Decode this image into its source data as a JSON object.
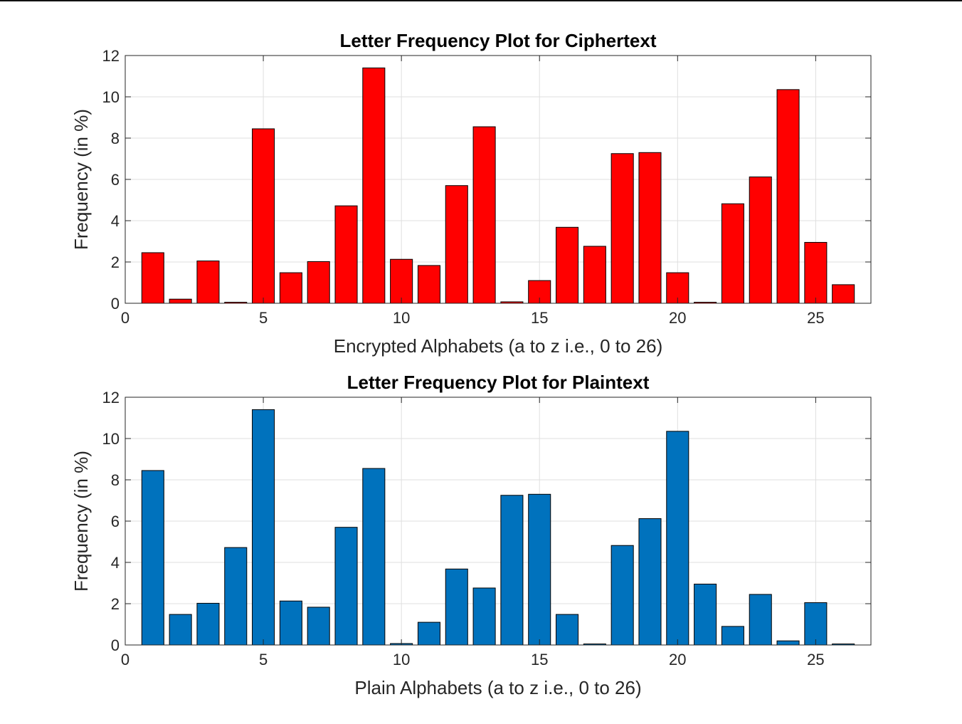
{
  "chart_data": [
    {
      "type": "bar",
      "title": "Letter Frequency Plot for Ciphertext",
      "xlabel": "Encrypted Alphabets (a to z i.e., 0 to 26)",
      "ylabel": "Frequency (in %)",
      "xlim": [
        0,
        27
      ],
      "ylim": [
        0,
        12
      ],
      "xticks": [
        0,
        5,
        10,
        15,
        20,
        25
      ],
      "yticks": [
        0,
        2,
        4,
        6,
        8,
        10,
        12
      ],
      "grid": true,
      "bar_color": "#ff0000",
      "x": [
        1,
        2,
        3,
        4,
        5,
        6,
        7,
        8,
        9,
        10,
        11,
        12,
        13,
        14,
        15,
        16,
        17,
        18,
        19,
        20,
        21,
        22,
        23,
        24,
        25,
        26
      ],
      "values": [
        2.45,
        0.2,
        2.05,
        0.05,
        8.45,
        1.48,
        2.02,
        4.72,
        11.4,
        2.13,
        1.83,
        5.7,
        8.55,
        0.07,
        1.1,
        3.68,
        2.76,
        7.25,
        7.3,
        1.48,
        0.05,
        4.82,
        6.12,
        10.35,
        2.95,
        0.9
      ]
    },
    {
      "type": "bar",
      "title": "Letter Frequency Plot for Plaintext",
      "xlabel": "Plain Alphabets (a to z i.e., 0 to 26)",
      "ylabel": "Frequency (in %)",
      "xlim": [
        0,
        27
      ],
      "ylim": [
        0,
        12
      ],
      "xticks": [
        0,
        5,
        10,
        15,
        20,
        25
      ],
      "yticks": [
        0,
        2,
        4,
        6,
        8,
        10,
        12
      ],
      "grid": true,
      "bar_color": "#0072bd",
      "x": [
        1,
        2,
        3,
        4,
        5,
        6,
        7,
        8,
        9,
        10,
        11,
        12,
        13,
        14,
        15,
        16,
        17,
        18,
        19,
        20,
        21,
        22,
        23,
        24,
        25,
        26
      ],
      "values": [
        8.45,
        1.48,
        2.02,
        4.72,
        11.4,
        2.13,
        1.83,
        5.7,
        8.55,
        0.07,
        1.1,
        3.68,
        2.76,
        7.25,
        7.3,
        1.48,
        0.05,
        4.82,
        6.12,
        10.35,
        2.95,
        0.9,
        2.45,
        0.2,
        2.05,
        0.05
      ]
    }
  ]
}
